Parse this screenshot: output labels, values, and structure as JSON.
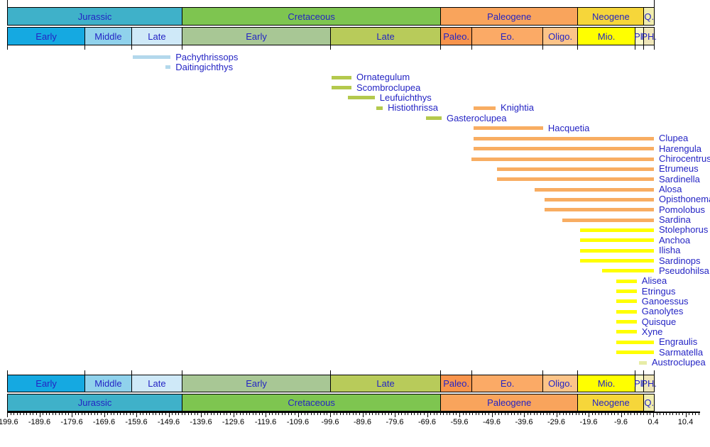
{
  "figure": {
    "description": "Fossil range chart of clupeiform fish genera plotted against the geological timescale (Jurassic to Quaternary)"
  },
  "colors": {
    "label_text": "#2424c4",
    "axis": "#000000",
    "background": "#ffffff"
  },
  "chart_data": {
    "type": "timeline-range",
    "unit": "Ma",
    "axis": {
      "min": -199.6,
      "max": 14.4,
      "major_step": 10,
      "minor_step": 1,
      "tick_labels": [
        "-199.6",
        "-189.6",
        "-179.6",
        "-169.6",
        "-159.6",
        "-149.6",
        "-139.6",
        "-129.6",
        "-119.6",
        "-109.6",
        "-99.6",
        "-89.6",
        "-79.6",
        "-69.6",
        "-59.6",
        "-49.6",
        "-39.6",
        "-29.6",
        "-19.6",
        "-9.6",
        "0.4",
        "10.4"
      ]
    },
    "periods": [
      {
        "label": "Jurassic",
        "start": -199.6,
        "end": -145.5,
        "color": "#3fb1c9"
      },
      {
        "label": "Cretaceous",
        "start": -145.5,
        "end": -65.5,
        "color": "#7ec550"
      },
      {
        "label": "Paleogene",
        "start": -65.5,
        "end": -23.03,
        "color": "#f9a45c"
      },
      {
        "label": "Neogene",
        "start": -23.03,
        "end": -2.588,
        "color": "#f6d63a"
      },
      {
        "label": "Q.",
        "start": -2.588,
        "end": 0.62,
        "color": "#f1edae"
      }
    ],
    "epochs": [
      {
        "label": "Early",
        "start": -199.6,
        "end": -175.6,
        "color": "#15a9e1"
      },
      {
        "label": "Middle",
        "start": -175.6,
        "end": -161.2,
        "color": "#90d2ec"
      },
      {
        "label": "Late",
        "start": -161.2,
        "end": -145.5,
        "color": "#cfe9f8"
      },
      {
        "label": "Early",
        "start": -145.5,
        "end": -99.6,
        "color": "#a8c795"
      },
      {
        "label": "Late",
        "start": -99.6,
        "end": -65.5,
        "color": "#b8cb5a"
      },
      {
        "label": "Paleo.",
        "start": -65.5,
        "end": -55.8,
        "color": "#f8944c"
      },
      {
        "label": "Eo.",
        "start": -55.8,
        "end": -33.9,
        "color": "#fbaa66"
      },
      {
        "label": "Oligo.",
        "start": -33.9,
        "end": -23.03,
        "color": "#fcc488"
      },
      {
        "label": "Mio.",
        "start": -23.03,
        "end": -5.332,
        "color": "#ffff00"
      },
      {
        "label": "Pl.",
        "start": -5.332,
        "end": -2.588,
        "color": "#fbf8c6"
      },
      {
        "label": "PH.",
        "start": -2.588,
        "end": 0.62,
        "color": "#efe6b8"
      }
    ],
    "taxa": [
      {
        "label": "Pachythrissops",
        "start": -160.7,
        "end": -149.0,
        "row": 0,
        "color": "#b3d8ec"
      },
      {
        "label": "Daitingichthys",
        "start": -150.6,
        "end": -149.0,
        "row": 1,
        "color": "#b3d8ec"
      },
      {
        "label": "Ornategulum",
        "start": -99.2,
        "end": -93.0,
        "row": 2,
        "color": "#b4c94d"
      },
      {
        "label": "Scombroclupea",
        "start": -99.2,
        "end": -93.0,
        "row": 3,
        "color": "#b4c94d"
      },
      {
        "label": "Leufuichthys",
        "start": -94.2,
        "end": -85.8,
        "row": 4,
        "color": "#b4c94d"
      },
      {
        "label": "Histiothrissa",
        "start": -85.3,
        "end": -83.3,
        "row": 5,
        "color": "#b4c94d"
      },
      {
        "label": "Knightia",
        "start": -55.2,
        "end": -48.4,
        "row": 5,
        "color": "#f8ad62"
      },
      {
        "label": "Gasteroclupea",
        "start": -69.9,
        "end": -65.1,
        "row": 6,
        "color": "#b4c94d"
      },
      {
        "label": "Hacquetia",
        "start": -55.2,
        "end": -33.7,
        "row": 7,
        "color": "#f8ad62"
      },
      {
        "label": "Clupea",
        "start": -55.2,
        "end": 0.62,
        "row": 8,
        "color": "#f8ad62"
      },
      {
        "label": "Harengula",
        "start": -55.2,
        "end": 0.62,
        "row": 9,
        "color": "#f8ad62"
      },
      {
        "label": "Chirocentrus",
        "start": -55.9,
        "end": 0.62,
        "row": 10,
        "color": "#f8ad62"
      },
      {
        "label": "Etrumeus",
        "start": -48.0,
        "end": 0.62,
        "row": 11,
        "color": "#f8ad62"
      },
      {
        "label": "Sardinella",
        "start": -48.0,
        "end": 0.62,
        "row": 12,
        "color": "#f8ad62"
      },
      {
        "label": "Alosa",
        "start": -36.3,
        "end": 0.62,
        "row": 13,
        "color": "#f8ad62"
      },
      {
        "label": "Opisthonema",
        "start": -33.2,
        "end": 0.62,
        "row": 14,
        "color": "#f8ad62"
      },
      {
        "label": "Pomolobus",
        "start": -33.2,
        "end": 0.62,
        "row": 15,
        "color": "#f8ad62"
      },
      {
        "label": "Sardina",
        "start": -27.7,
        "end": 0.62,
        "row": 16,
        "color": "#f8ad62"
      },
      {
        "label": "Stolephorus",
        "start": -22.2,
        "end": 0.62,
        "row": 17,
        "color": "#ffff00"
      },
      {
        "label": "Anchoa",
        "start": -22.2,
        "end": 0.62,
        "row": 18,
        "color": "#ffff00"
      },
      {
        "label": "Ilisha",
        "start": -22.2,
        "end": 0.62,
        "row": 19,
        "color": "#ffff00"
      },
      {
        "label": "Sardinops",
        "start": -22.2,
        "end": 0.62,
        "row": 20,
        "color": "#ffff00"
      },
      {
        "label": "Pseudohilsa",
        "start": -15.4,
        "end": 0.62,
        "row": 21,
        "color": "#ffff00"
      },
      {
        "label": "Alisea",
        "start": -11.0,
        "end": -4.7,
        "row": 22,
        "color": "#ffff00"
      },
      {
        "label": "Etringus",
        "start": -11.0,
        "end": -4.7,
        "row": 23,
        "color": "#ffff00"
      },
      {
        "label": "Ganoessus",
        "start": -11.0,
        "end": -4.7,
        "row": 24,
        "color": "#ffff00"
      },
      {
        "label": "Ganolytes",
        "start": -11.0,
        "end": -4.7,
        "row": 25,
        "color": "#ffff00"
      },
      {
        "label": "Quisque",
        "start": -11.0,
        "end": -4.7,
        "row": 26,
        "color": "#ffff00"
      },
      {
        "label": "Xyne",
        "start": -11.0,
        "end": -4.7,
        "row": 27,
        "color": "#ffff00"
      },
      {
        "label": "Engraulis",
        "start": -11.0,
        "end": 0.62,
        "row": 28,
        "color": "#ffff00"
      },
      {
        "label": "Sarmatella",
        "start": -11.0,
        "end": 0.62,
        "row": 29,
        "color": "#ffff00"
      },
      {
        "label": "Austroclupea",
        "start": -4.0,
        "end": -1.6,
        "row": 30,
        "color": "#e7eca6"
      }
    ]
  }
}
